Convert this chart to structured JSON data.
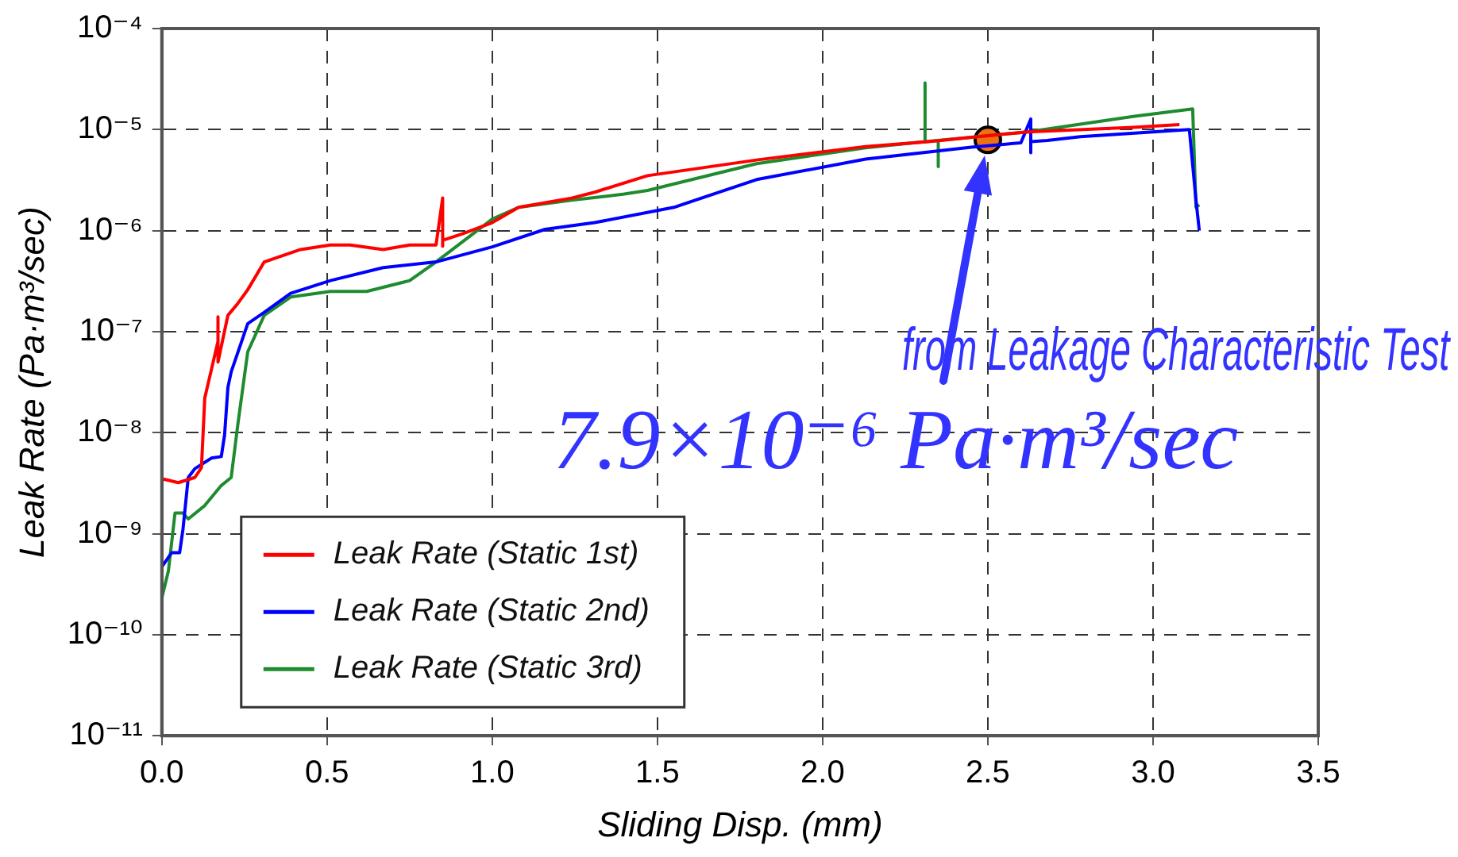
{
  "chart_data": {
    "type": "line",
    "xlabel": "Sliding Disp. (mm)",
    "ylabel": "Leak Rate (Pa·m³/sec)",
    "log": "y",
    "xlim": [
      0,
      3.5
    ],
    "xticks": [
      {
        "value": 0,
        "label": "0.0"
      },
      0.5,
      {
        "value": 1,
        "label": "1.0"
      },
      1.5,
      {
        "value": 2,
        "label": "2.0"
      },
      2.5,
      {
        "value": 3,
        "label": "3.0"
      },
      3.5
    ],
    "ylim": [
      1e-11,
      0.0001
    ],
    "yticks": [
      {
        "value": 1e-11,
        "label": "10⁻¹¹"
      },
      {
        "value": 1e-10,
        "label": "10⁻¹⁰"
      },
      {
        "value": 1e-09,
        "label": "10⁻⁹"
      },
      {
        "value": 1e-08,
        "label": "10⁻⁸"
      },
      {
        "value": 1e-07,
        "label": "10⁻⁷"
      },
      {
        "value": 1e-06,
        "label": "10⁻⁶"
      },
      {
        "value": 1e-05,
        "label": "10⁻⁵"
      },
      {
        "value": 0.0001,
        "label": "10⁻⁴"
      }
    ],
    "grid": true,
    "legend": "bottom left",
    "marker": "none",
    "series": [
      {
        "name": "Leak Rate (Static 1st)",
        "color": "#ff0000",
        "x": [
          0,
          0.05,
          0.1,
          0.12,
          0.13,
          0.17,
          0.17,
          0.17,
          0.2,
          0.23,
          0.26,
          0.31,
          0.42,
          0.51,
          0.57,
          0.67,
          0.75,
          0.83,
          0.85,
          0.85,
          0.85,
          0.91,
          1.0,
          1.08,
          1.24,
          1.31,
          1.47,
          1.8,
          2.13,
          2.32,
          2.62,
          2.94,
          3.08
        ],
        "values": [
          3.5e-09,
          3.2e-09,
          3.6e-09,
          4.5e-09,
          2.2e-08,
          8e-08,
          1.4e-07,
          5e-08,
          1.45e-07,
          1.9e-07,
          2.6e-07,
          4.9e-07,
          6.5e-07,
          7.2e-07,
          7.2e-07,
          6.5e-07,
          7.2e-07,
          7.2e-07,
          2.1e-06,
          7e-07,
          8e-07,
          9.3e-07,
          1.2e-06,
          1.7e-06,
          2.1e-06,
          2.4e-06,
          3.5e-06,
          5e-06,
          6.8e-06,
          7.6e-06,
          9.5e-06,
          1.05e-05,
          1.12e-05
        ]
      },
      {
        "name": "Leak Rate (Static 2nd)",
        "color": "#0000ff",
        "x": [
          0,
          0.03,
          0.054,
          0.064,
          0.08,
          0.1,
          0.15,
          0.18,
          0.19,
          0.2,
          0.21,
          0.26,
          0.31,
          0.39,
          0.51,
          0.67,
          0.83,
          1.0,
          1.16,
          1.31,
          1.55,
          1.8,
          2.13,
          2.45,
          2.6,
          2.63,
          2.63,
          2.63,
          2.68,
          2.78,
          3.11,
          3.13,
          3.14
        ],
        "values": [
          4.7e-10,
          6.5e-10,
          6.5e-10,
          1.1e-09,
          3.6e-09,
          4.4e-09,
          5.6e-09,
          5.8e-09,
          9.5e-09,
          2.8e-08,
          4e-08,
          1.2e-07,
          1.55e-07,
          2.4e-07,
          3.2e-07,
          4.3e-07,
          4.9e-07,
          6.9e-07,
          1.03e-06,
          1.2e-06,
          1.7e-06,
          3.2e-06,
          5.1e-06,
          6.7e-06,
          7.4e-06,
          1.27e-05,
          5.9e-06,
          7.6e-06,
          7.8e-06,
          8.5e-06,
          1e-05,
          2e-06,
          1e-06
        ]
      },
      {
        "name": "Leak Rate (Static 3rd)",
        "color": "#1e8c2e",
        "x": [
          0,
          0.02,
          0.04,
          0.064,
          0.08,
          0.13,
          0.18,
          0.21,
          0.23,
          0.26,
          0.31,
          0.39,
          0.51,
          0.62,
          0.75,
          0.83,
          1.0,
          1.08,
          1.24,
          1.4,
          1.47,
          1.8,
          2.13,
          2.31,
          2.31,
          2.31,
          2.35,
          2.35,
          2.35,
          2.62,
          2.94,
          3.12,
          3.13,
          3.14
        ],
        "values": [
          2.3e-10,
          4.3e-10,
          1.6e-09,
          1.6e-09,
          1.4e-09,
          1.9e-09,
          3e-09,
          3.6e-09,
          1.2e-08,
          6.3e-08,
          1.45e-07,
          2.2e-07,
          2.5e-07,
          2.5e-07,
          3.2e-07,
          4.9e-07,
          1.3e-06,
          1.7e-06,
          2e-06,
          2.3e-06,
          2.5e-06,
          4.6e-06,
          6.6e-06,
          7.6e-06,
          2.9e-05,
          7.6e-06,
          7.8e-06,
          4.3e-06,
          7.8e-06,
          9.5e-06,
          1.35e-05,
          1.6e-05,
          1.7e-06,
          1.8e-06
        ]
      },
      {
        "type": "scatter",
        "marker": "circle",
        "color": "#f07010",
        "x": [
          2.5
        ],
        "values": [
          7.9e-06
        ]
      }
    ],
    "annotations": [
      "from Leakage Characteristic Test",
      "7.9×10⁻⁶ Pa·m³/sec"
    ]
  }
}
